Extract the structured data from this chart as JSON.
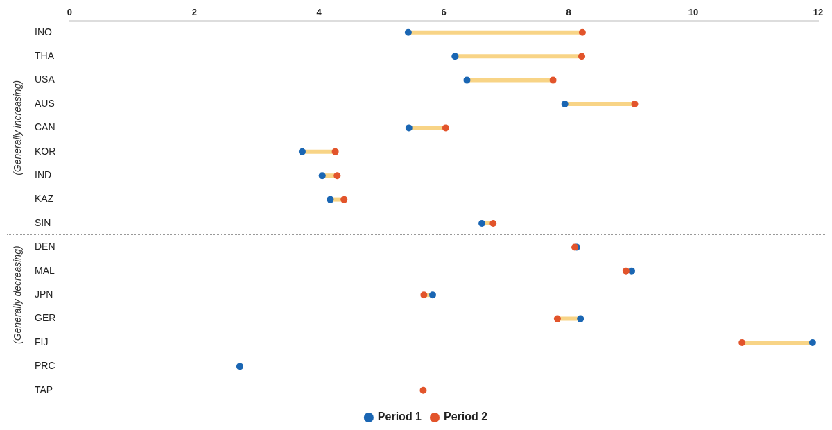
{
  "chart_data": {
    "type": "scatter",
    "orientation": "horizontal",
    "categories": [
      "INO",
      "THA",
      "USA",
      "AUS",
      "CAN",
      "KOR",
      "IND",
      "KAZ",
      "SIN",
      "DEN",
      "MAL",
      "JPN",
      "GER",
      "FIJ",
      "PRC",
      "TAP"
    ],
    "series": [
      {
        "name": "Period 1",
        "color": "#1a66b3",
        "values": [
          5.43,
          6.18,
          6.37,
          7.94,
          5.44,
          3.73,
          4.05,
          4.18,
          6.61,
          8.13,
          9.01,
          5.82,
          8.19,
          11.91,
          2.73,
          null
        ]
      },
      {
        "name": "Period 2",
        "color": "#e2542b",
        "values": [
          8.22,
          8.21,
          7.75,
          9.06,
          6.03,
          4.26,
          4.29,
          4.4,
          6.79,
          8.1,
          8.92,
          5.68,
          7.82,
          10.78,
          null,
          5.67
        ]
      }
    ],
    "xlim": [
      0,
      12
    ],
    "xticks": [
      0,
      2,
      4,
      6,
      8,
      10,
      12
    ],
    "annotations": [
      "(Generally increasing)",
      "(Generally decreasing)"
    ],
    "grid": false,
    "legend": "bottom",
    "marker": "circle"
  }
}
